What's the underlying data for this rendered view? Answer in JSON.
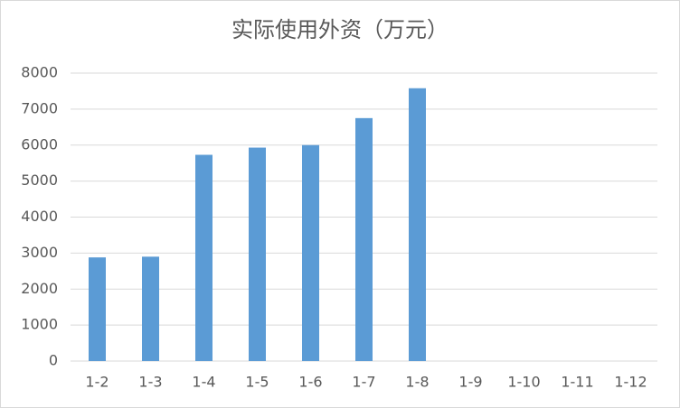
{
  "chart_data": {
    "type": "bar",
    "title": "实际使用外资（万元）",
    "categories": [
      "1-2",
      "1-3",
      "1-4",
      "1-5",
      "1-6",
      "1-7",
      "1-8",
      "1-9",
      "1-10",
      "1-11",
      "1-12"
    ],
    "values": [
      2880,
      2900,
      5730,
      5930,
      6000,
      6750,
      7580,
      null,
      null,
      null,
      null
    ],
    "color": "#5b9bd5",
    "ylim": [
      0,
      8000
    ],
    "yticks": [
      0,
      1000,
      2000,
      3000,
      4000,
      5000,
      6000,
      7000,
      8000
    ],
    "grid": true
  }
}
